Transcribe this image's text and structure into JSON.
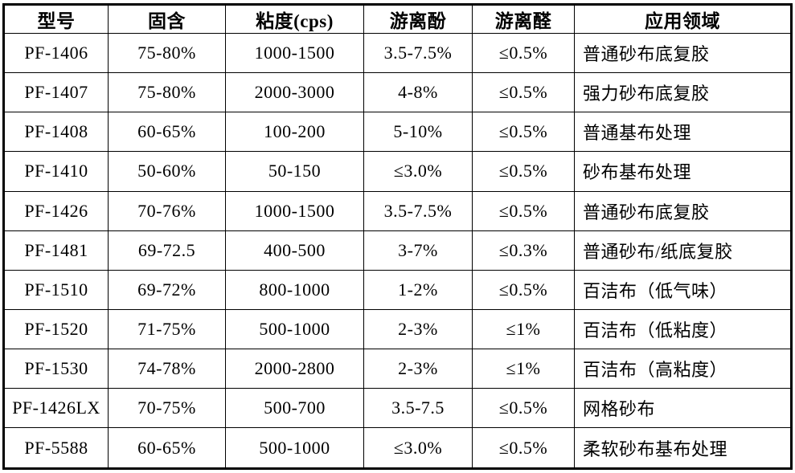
{
  "table": {
    "columns": [
      "型号",
      "固含",
      "粘度(cps)",
      "游离酚",
      "游离醛",
      "应用领域"
    ],
    "rows": [
      [
        "PF-1406",
        "75-80%",
        "1000-1500",
        "3.5-7.5%",
        "≤0.5%",
        "普通砂布底复胶"
      ],
      [
        "PF-1407",
        "75-80%",
        "2000-3000",
        "4-8%",
        "≤0.5%",
        "强力砂布底复胶"
      ],
      [
        "PF-1408",
        "60-65%",
        "100-200",
        "5-10%",
        "≤0.5%",
        "普通基布处理"
      ],
      [
        "PF-1410",
        "50-60%",
        "50-150",
        "≤3.0%",
        "≤0.5%",
        "砂布基布处理"
      ],
      [
        "PF-1426",
        "70-76%",
        "1000-1500",
        "3.5-7.5%",
        "≤0.5%",
        "普通砂布底复胶"
      ],
      [
        "PF-1481",
        "69-72.5",
        "400-500",
        "3-7%",
        "≤0.3%",
        "普通砂布/纸底复胶"
      ],
      [
        "PF-1510",
        "69-72%",
        "800-1000",
        "1-2%",
        "≤0.5%",
        "百洁布（低气味）"
      ],
      [
        "PF-1520",
        "71-75%",
        "500-1000",
        "2-3%",
        "≤1%",
        "百洁布（低粘度）"
      ],
      [
        "PF-1530",
        "74-78%",
        "2000-2800",
        "2-3%",
        "≤1%",
        "百洁布（高粘度）"
      ],
      [
        "PF-1426LX",
        "70-75%",
        "500-700",
        "3.5-7.5",
        "≤0.5%",
        "网格砂布"
      ],
      [
        "PF-5588",
        "60-65%",
        "500-1000",
        "≤3.0%",
        "≤0.5%",
        "柔软砂布基布处理"
      ]
    ],
    "colors": {
      "border": "#000000",
      "text": "#000000",
      "background": "#ffffff"
    }
  }
}
